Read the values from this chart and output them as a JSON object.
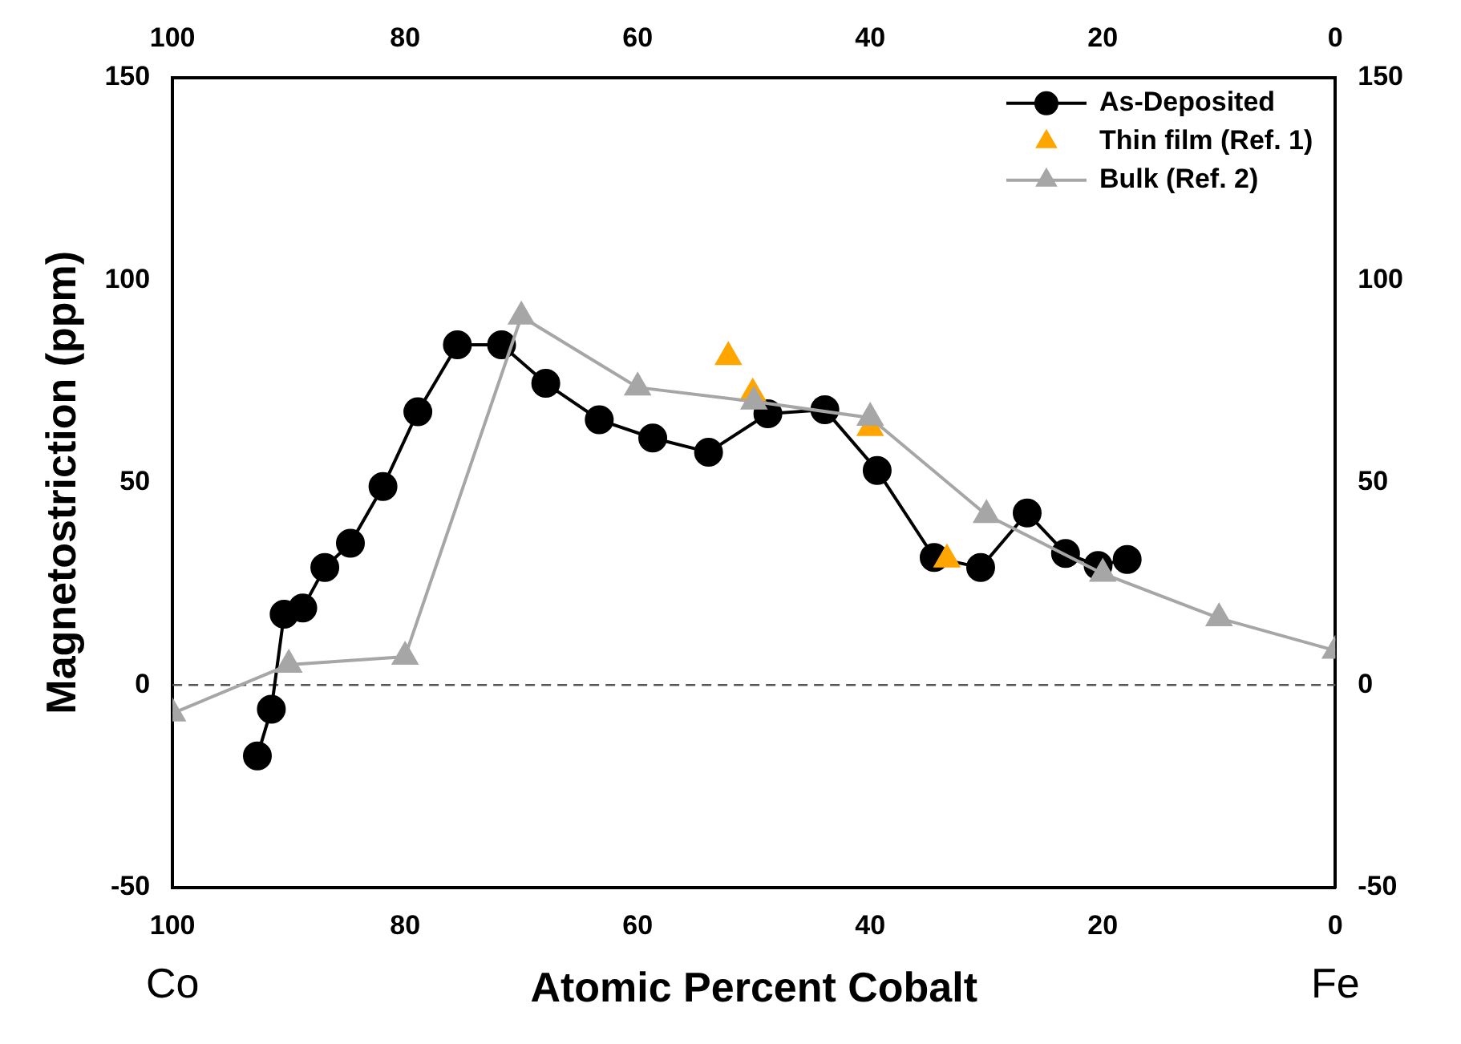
{
  "chart_data": {
    "type": "line",
    "xlabel": "Atomic Percent Cobalt",
    "ylabel": "Magnetostriction (ppm)",
    "annotations": [
      "Co",
      "Fe"
    ],
    "xlim": [
      100,
      0
    ],
    "xticks": [
      100,
      80,
      60,
      40,
      20,
      0
    ],
    "x2lim": [
      100,
      0
    ],
    "x2ticks": [
      100,
      80,
      60,
      40,
      20,
      0
    ],
    "ylim": [
      -50,
      150
    ],
    "yticks": [
      -50,
      0,
      50,
      100,
      150
    ],
    "y2lim": [
      -50,
      150
    ],
    "y2ticks": [
      -50,
      0,
      50,
      100,
      150
    ],
    "legend": "top right",
    "grid": false,
    "ref_lines": [
      {
        "axis": "y",
        "value": 0,
        "color": "#555555",
        "line_style": "dashed"
      }
    ],
    "series": [
      {
        "name": "As-Deposited",
        "color": "#000000",
        "marker": "circle",
        "line_style": "solid",
        "x": [
          92.7,
          91.5,
          90.4,
          88.8,
          86.9,
          84.7,
          81.9,
          78.9,
          75.5,
          71.7,
          67.9,
          63.3,
          58.7,
          53.9,
          48.8,
          43.9,
          39.4,
          34.5,
          30.5,
          26.5,
          23.2,
          20.4,
          17.9
        ],
        "values": [
          -17.5,
          -6,
          17.5,
          19,
          29,
          35,
          49,
          67.5,
          84,
          84,
          74.5,
          65.5,
          61,
          57.5,
          67,
          68,
          53,
          31.5,
          29,
          42.5,
          32.5,
          29.5,
          31
        ]
      },
      {
        "name": "Thin film (Ref. 1)",
        "type": "scatter",
        "color": "#ffa500",
        "marker": "triangle",
        "x": [
          52.2,
          50.1,
          40,
          33.4
        ],
        "values": [
          81,
          72,
          63.5,
          31
        ]
      },
      {
        "name": "Bulk (Ref. 2)",
        "color": "#a6a6a6",
        "marker": "triangle",
        "line_style": "solid",
        "x": [
          100,
          90,
          80,
          70,
          60,
          50,
          40,
          30,
          20,
          10,
          0
        ],
        "values": [
          -7,
          5,
          7,
          91,
          73.5,
          70,
          66,
          42,
          27.5,
          16.5,
          8.5
        ]
      }
    ]
  }
}
